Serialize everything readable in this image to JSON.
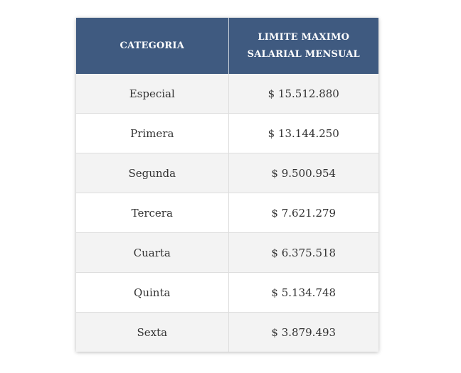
{
  "table": {
    "headers": {
      "category": "CATEGORIA",
      "limit_line1": "LIMITE MAXIMO",
      "limit_line2": "SALARIAL MENSUAL"
    },
    "rows": [
      {
        "category": "Especial",
        "limit": "$ 15.512.880"
      },
      {
        "category": "Primera",
        "limit": "$ 13.144.250"
      },
      {
        "category": "Segunda",
        "limit": "$ 9.500.954"
      },
      {
        "category": "Tercera",
        "limit": "$ 7.621.279"
      },
      {
        "category": "Cuarta",
        "limit": "$ 6.375.518"
      },
      {
        "category": "Quinta",
        "limit": "$ 5.134.748"
      },
      {
        "category": "Sexta",
        "limit": "$ 3.879.493"
      }
    ]
  },
  "colors": {
    "header_background": "#3f5a80",
    "header_text": "#ffffff",
    "row_stripe": "#f3f3f3",
    "cell_text": "#333333"
  }
}
